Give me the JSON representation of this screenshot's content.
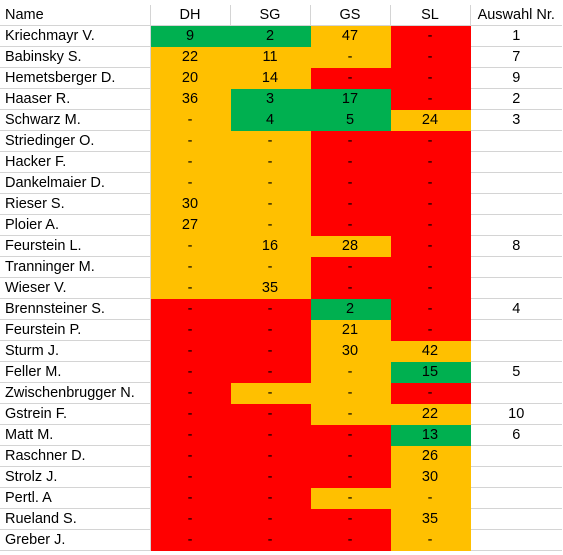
{
  "colors": {
    "red": "#ff0000",
    "orange": "#ffc000",
    "green": "#00b050"
  },
  "headers": [
    "Name",
    "DH",
    "SG",
    "GS",
    "SL",
    "Auswahl Nr."
  ],
  "rows": [
    {
      "name": "Kriechmayr V.",
      "cells": [
        [
          "9",
          "g"
        ],
        [
          "2",
          "g"
        ],
        [
          "47",
          "o"
        ],
        [
          "-",
          "r"
        ]
      ],
      "nr": "1"
    },
    {
      "name": "Babinsky S.",
      "cells": [
        [
          "22",
          "o"
        ],
        [
          "11",
          "o"
        ],
        [
          "-",
          "o"
        ],
        [
          "-",
          "r"
        ]
      ],
      "nr": "7"
    },
    {
      "name": "Hemetsberger D.",
      "cells": [
        [
          "20",
          "o"
        ],
        [
          "14",
          "o"
        ],
        [
          "-",
          "r"
        ],
        [
          "-",
          "r"
        ]
      ],
      "nr": "9"
    },
    {
      "name": "Haaser R.",
      "cells": [
        [
          "36",
          "o"
        ],
        [
          "3",
          "g"
        ],
        [
          "17",
          "g"
        ],
        [
          "-",
          "r"
        ]
      ],
      "nr": "2"
    },
    {
      "name": "Schwarz M.",
      "cells": [
        [
          "-",
          "o"
        ],
        [
          "4",
          "g"
        ],
        [
          "5",
          "g"
        ],
        [
          "24",
          "o"
        ]
      ],
      "nr": "3"
    },
    {
      "name": "Striedinger O.",
      "cells": [
        [
          "-",
          "o"
        ],
        [
          "-",
          "o"
        ],
        [
          "-",
          "r"
        ],
        [
          "-",
          "r"
        ]
      ],
      "nr": ""
    },
    {
      "name": "Hacker F.",
      "cells": [
        [
          "-",
          "o"
        ],
        [
          "-",
          "o"
        ],
        [
          "-",
          "r"
        ],
        [
          "-",
          "r"
        ]
      ],
      "nr": ""
    },
    {
      "name": "Dankelmaier D.",
      "cells": [
        [
          "-",
          "o"
        ],
        [
          "-",
          "o"
        ],
        [
          "-",
          "r"
        ],
        [
          "-",
          "r"
        ]
      ],
      "nr": ""
    },
    {
      "name": "Rieser S.",
      "cells": [
        [
          "30",
          "o"
        ],
        [
          "-",
          "o"
        ],
        [
          "-",
          "r"
        ],
        [
          "-",
          "r"
        ]
      ],
      "nr": ""
    },
    {
      "name": "Ploier A.",
      "cells": [
        [
          "27",
          "o"
        ],
        [
          "-",
          "o"
        ],
        [
          "-",
          "r"
        ],
        [
          "-",
          "r"
        ]
      ],
      "nr": ""
    },
    {
      "name": "Feurstein L.",
      "cells": [
        [
          "-",
          "o"
        ],
        [
          "16",
          "o"
        ],
        [
          "28",
          "o"
        ],
        [
          "-",
          "r"
        ]
      ],
      "nr": "8"
    },
    {
      "name": "Tranninger M.",
      "cells": [
        [
          "-",
          "o"
        ],
        [
          "-",
          "o"
        ],
        [
          "-",
          "r"
        ],
        [
          "-",
          "r"
        ]
      ],
      "nr": ""
    },
    {
      "name": "Wieser V.",
      "cells": [
        [
          "-",
          "o"
        ],
        [
          "35",
          "o"
        ],
        [
          "-",
          "r"
        ],
        [
          "-",
          "r"
        ]
      ],
      "nr": ""
    },
    {
      "name": "Brennsteiner S.",
      "cells": [
        [
          "-",
          "r"
        ],
        [
          "-",
          "r"
        ],
        [
          "2",
          "g"
        ],
        [
          "-",
          "r"
        ]
      ],
      "nr": "4"
    },
    {
      "name": "Feurstein P.",
      "cells": [
        [
          "-",
          "r"
        ],
        [
          "-",
          "r"
        ],
        [
          "21",
          "o"
        ],
        [
          "-",
          "r"
        ]
      ],
      "nr": ""
    },
    {
      "name": "Sturm J.",
      "cells": [
        [
          "-",
          "r"
        ],
        [
          "-",
          "r"
        ],
        [
          "30",
          "o"
        ],
        [
          "42",
          "o"
        ]
      ],
      "nr": ""
    },
    {
      "name": "Feller M.",
      "cells": [
        [
          "-",
          "r"
        ],
        [
          "-",
          "r"
        ],
        [
          "-",
          "o"
        ],
        [
          "15",
          "g"
        ]
      ],
      "nr": "5"
    },
    {
      "name": "Zwischenbrugger N.",
      "cells": [
        [
          "-",
          "r"
        ],
        [
          "-",
          "o"
        ],
        [
          "-",
          "o"
        ],
        [
          "-",
          "r"
        ]
      ],
      "nr": ""
    },
    {
      "name": "Gstrein F.",
      "cells": [
        [
          "-",
          "r"
        ],
        [
          "-",
          "r"
        ],
        [
          "-",
          "o"
        ],
        [
          "22",
          "o"
        ]
      ],
      "nr": "10"
    },
    {
      "name": "Matt M.",
      "cells": [
        [
          "-",
          "r"
        ],
        [
          "-",
          "r"
        ],
        [
          "-",
          "r"
        ],
        [
          "13",
          "g"
        ]
      ],
      "nr": "6"
    },
    {
      "name": "Raschner D.",
      "cells": [
        [
          "-",
          "r"
        ],
        [
          "-",
          "r"
        ],
        [
          "-",
          "r"
        ],
        [
          "26",
          "o"
        ]
      ],
      "nr": ""
    },
    {
      "name": "Strolz J.",
      "cells": [
        [
          "-",
          "r"
        ],
        [
          "-",
          "r"
        ],
        [
          "-",
          "r"
        ],
        [
          "30",
          "o"
        ]
      ],
      "nr": ""
    },
    {
      "name": "Pertl. A",
      "cells": [
        [
          "-",
          "r"
        ],
        [
          "-",
          "r"
        ],
        [
          "-",
          "o"
        ],
        [
          "-",
          "o"
        ]
      ],
      "nr": ""
    },
    {
      "name": "Rueland S.",
      "cells": [
        [
          "-",
          "r"
        ],
        [
          "-",
          "r"
        ],
        [
          "-",
          "r"
        ],
        [
          "35",
          "o"
        ]
      ],
      "nr": ""
    },
    {
      "name": "Greber J.",
      "cells": [
        [
          "-",
          "r"
        ],
        [
          "-",
          "r"
        ],
        [
          "-",
          "r"
        ],
        [
          "-",
          "o"
        ]
      ],
      "nr": ""
    }
  ]
}
